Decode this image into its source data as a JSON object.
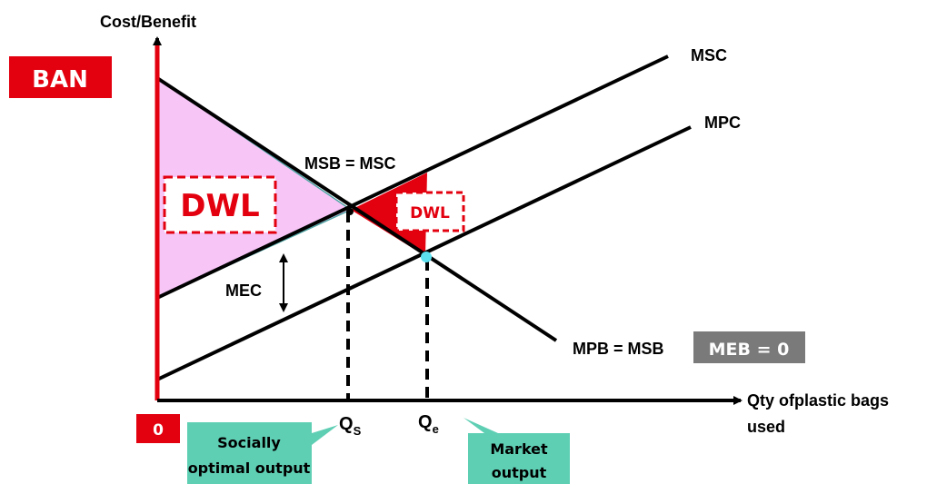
{
  "labels": {
    "y_axis": "Cost/Benefit",
    "x_axis_line1": "Qty ofplastic bags",
    "x_axis_line2": "used",
    "msc": "MSC",
    "mpc": "MPC",
    "msb_eq_msc": "MSB = MSC",
    "mpb_eq_msb": "MPB = MSB",
    "mec": "MEC",
    "dwl_large": "DWL",
    "dwl_small": "DWL",
    "ban": "BAN",
    "meb": "MEB = 0",
    "origin": "0",
    "qs_main": "Q",
    "qs_sub": "S",
    "qe_main": "Q",
    "qe_sub": "e",
    "callout_socially_line1": "Socially",
    "callout_socially_line2": "optimal output",
    "callout_market_line1": "Market",
    "callout_market_line2": "output"
  },
  "colors": {
    "ban_box": "#e3000f",
    "dwl_pink": "#f7c6f7",
    "dwl_red": "#e3000f",
    "y_axis_highlight": "#e3000f",
    "callout_fill": "#5fcfb4",
    "meb_box": "#7a7a7a",
    "market_point": "#5ce1f0"
  }
}
